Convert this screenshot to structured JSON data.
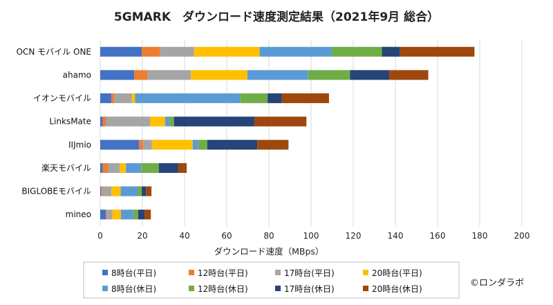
{
  "chart_data": {
    "type": "bar",
    "orientation": "horizontal",
    "stacked": true,
    "title": "5GMARK　ダウンロード速度測定結果（2021年9月 総合）",
    "xlabel": "ダウンロード速度（MBps）",
    "ylabel": "",
    "xlim": [
      0,
      200
    ],
    "xticks": [
      0,
      20,
      40,
      60,
      80,
      100,
      120,
      140,
      160,
      180,
      200
    ],
    "grid": true,
    "legend_position": "bottom",
    "categories": [
      "OCN モバイル ONE",
      "ahamo",
      "イオンモバイル",
      "LinksMate",
      "IIJmio",
      "楽天モバイル",
      "BIGLOBEモバイル",
      "mineo"
    ],
    "series": [
      {
        "name": "8時台(平日)",
        "color": "#4472C4",
        "values": [
          19.7,
          16.1,
          5.3,
          1.2,
          18.4,
          1.2,
          0.4,
          2.7
        ]
      },
      {
        "name": "12時台(平日)",
        "color": "#ED7D31",
        "values": [
          8.5,
          6.2,
          1.3,
          1.6,
          1.8,
          2.6,
          0.6,
          0.5
        ]
      },
      {
        "name": "17時台(平日)",
        "color": "#A5A5A5",
        "values": [
          16.3,
          20.7,
          8.4,
          20.8,
          4.3,
          5.4,
          4.3,
          2.6
        ]
      },
      {
        "name": "20時台(平日)",
        "color": "#FFC000",
        "values": [
          31.1,
          26.8,
          1.5,
          7.2,
          19.4,
          3.0,
          4.4,
          4.0
        ]
      },
      {
        "name": "8時台(休日)",
        "color": "#5B9BD5",
        "values": [
          34.1,
          28.8,
          49.8,
          2.1,
          2.6,
          7.2,
          8.0,
          5.9
        ]
      },
      {
        "name": "12時台(休日)",
        "color": "#70AD47",
        "values": [
          23.9,
          19.9,
          13.1,
          2.1,
          4.3,
          8.4,
          2.0,
          2.3
        ]
      },
      {
        "name": "17時台(休日)",
        "color": "#264478",
        "values": [
          8.5,
          18.6,
          6.7,
          38.1,
          23.7,
          9.1,
          2.0,
          3.0
        ]
      },
      {
        "name": "20時台(休日)",
        "color": "#9E480E",
        "values": [
          35.4,
          18.5,
          22.4,
          24.7,
          14.8,
          4.1,
          2.6,
          3.0
        ]
      }
    ]
  },
  "credit": "©ロンダラボ"
}
